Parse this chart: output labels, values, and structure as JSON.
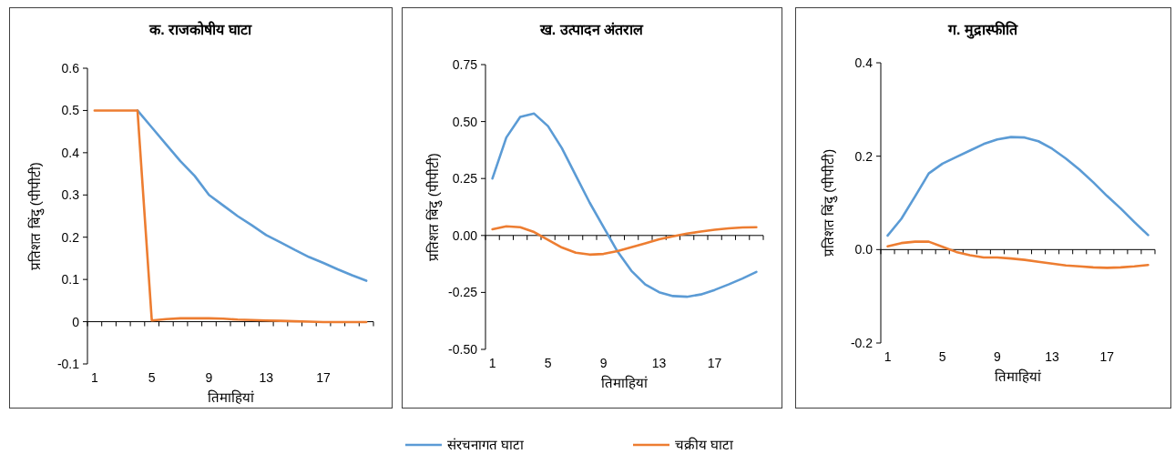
{
  "chart_data": [
    {
      "type": "line",
      "title": "क. राजकोषीय घाटा",
      "xlabel": "तिमाहियां",
      "ylabel": "प्रतिशत बिंदु (पीपीटी)",
      "legend": "bottom",
      "categories": [
        "1",
        null,
        null,
        null,
        "5",
        null,
        null,
        null,
        "9",
        null,
        null,
        null,
        "13",
        null,
        null,
        null,
        "17",
        null,
        null,
        null
      ],
      "ylim": [
        -0.1,
        0.6
      ],
      "yticks": [
        -0.1,
        0,
        0.1,
        0.2,
        0.3,
        0.4,
        0.5,
        0.6
      ],
      "series": [
        {
          "name": "संरचनागत घाटा",
          "color": "#5b9bd5",
          "values": [
            null,
            null,
            null,
            0.5,
            0.46,
            0.42,
            0.38,
            0.345,
            0.3,
            0.275,
            0.25,
            0.228,
            0.205,
            0.188,
            0.17,
            0.153,
            0.139,
            0.124,
            0.11,
            0.097
          ]
        },
        {
          "name": "चक्रीय घाटा",
          "color": "#ed7d31",
          "values": [
            0.5,
            0.5,
            0.5,
            0.5,
            0.003,
            0.006,
            0.008,
            0.008,
            0.008,
            0.007,
            0.005,
            0.004,
            0.003,
            0.002,
            0.001,
            0,
            -0.001,
            -0.001,
            -0.001,
            -0.001
          ]
        }
      ]
    },
    {
      "type": "line",
      "title": "ख. उत्पादन अंतराल",
      "xlabel": "तिमाहियां",
      "ylabel": "प्रतिशत बिंदु (पीपीटी)",
      "legend": "bottom",
      "categories": [
        "1",
        null,
        null,
        null,
        "5",
        null,
        null,
        null,
        "9",
        null,
        null,
        null,
        "13",
        null,
        null,
        null,
        "17",
        null,
        null,
        null
      ],
      "ylim": [
        -0.5,
        0.75
      ],
      "yticks": [
        {
          "value": -0.5,
          "label": "-0.50"
        },
        {
          "value": -0.25,
          "label": "-0.25"
        },
        {
          "value": 0,
          "label": "0.00"
        },
        {
          "value": 0.25,
          "label": "0.25"
        },
        {
          "value": 0.5,
          "label": "0.50"
        },
        {
          "value": 0.75,
          "label": "0.75"
        }
      ],
      "series": [
        {
          "name": "संरचनागत घाटा",
          "color": "#5b9bd5",
          "values": [
            0.25,
            0.43,
            0.52,
            0.535,
            0.48,
            0.383,
            0.263,
            0.144,
            0.037,
            -0.07,
            -0.155,
            -0.215,
            -0.249,
            -0.266,
            -0.269,
            -0.259,
            -0.239,
            -0.215,
            -0.189,
            -0.16
          ]
        },
        {
          "name": "चक्रीय घाटा",
          "color": "#ed7d31",
          "values": [
            0.027,
            0.04,
            0.036,
            0.015,
            -0.019,
            -0.053,
            -0.076,
            -0.084,
            -0.081,
            -0.069,
            -0.052,
            -0.035,
            -0.017,
            -0.004,
            0.008,
            0.017,
            0.025,
            0.031,
            0.035,
            0.036
          ]
        }
      ]
    },
    {
      "type": "line",
      "title": "ग. मुद्रास्फीति",
      "xlabel": "तिमाहियां",
      "ylabel": "प्रतिशत बिंदु (पीपीटी)",
      "legend": "bottom",
      "categories": [
        "1",
        null,
        null,
        null,
        "5",
        null,
        null,
        null,
        "9",
        null,
        null,
        null,
        "13",
        null,
        null,
        null,
        "17",
        null,
        null,
        null
      ],
      "ylim": [
        -0.2,
        0.4
      ],
      "yticks": [
        {
          "value": -0.2,
          "label": "-0.2"
        },
        {
          "value": 0,
          "label": "0.0"
        },
        {
          "value": 0.2,
          "label": "0.2"
        },
        {
          "value": 0.4,
          "label": "0.4"
        }
      ],
      "series": [
        {
          "name": "संरचनागत घाटा",
          "color": "#5b9bd5",
          "values": [
            0.03,
            0.066,
            0.114,
            0.163,
            0.184,
            0.198,
            0.212,
            0.226,
            0.236,
            0.241,
            0.24,
            0.232,
            0.216,
            0.195,
            0.171,
            0.144,
            0.115,
            0.088,
            0.059,
            0.031
          ]
        },
        {
          "name": "चक्रीय घाटा",
          "color": "#ed7d31",
          "values": [
            0.007,
            0.014,
            0.017,
            0.017,
            0.006,
            -0.005,
            -0.012,
            -0.017,
            -0.017,
            -0.019,
            -0.022,
            -0.026,
            -0.03,
            -0.034,
            -0.036,
            -0.038,
            -0.039,
            -0.038,
            -0.036,
            -0.033
          ]
        }
      ]
    }
  ]
}
